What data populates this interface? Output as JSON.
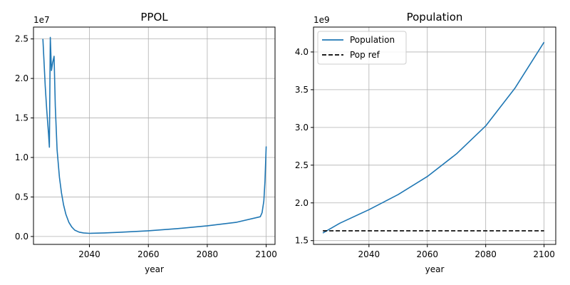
{
  "chart_data": [
    {
      "type": "line",
      "title": "PPOL",
      "xlabel": "year",
      "ylabel": "",
      "offset_text": "1e7",
      "xlim": [
        2021,
        2103
      ],
      "ylim": [
        -0.1,
        2.65
      ],
      "xticks": [
        2040,
        2060,
        2080,
        2100
      ],
      "xtick_labels": [
        "2040",
        "2060",
        "2080",
        "2100"
      ],
      "yticks": [
        0.0,
        0.5,
        1.0,
        1.5,
        2.0,
        2.5
      ],
      "ytick_labels": [
        "0.0",
        "0.5",
        "1.0",
        "1.5",
        "2.0",
        "2.5"
      ],
      "grid": true,
      "legend": null,
      "colors": {
        "line": "#1f77b4",
        "grid": "#b0b0b0"
      },
      "series": [
        {
          "name": "",
          "style": "solid",
          "x": [
            2024.2,
            2025.0,
            2025.5,
            2026.1,
            2026.4,
            2026.7,
            2027.1,
            2027.5,
            2028.0,
            2028.4,
            2029.0,
            2029.8,
            2030.5,
            2031.2,
            2032.0,
            2033.0,
            2034.0,
            2035.0,
            2036.5,
            2038.0,
            2040.0,
            2045.0,
            2050.0,
            2060.0,
            2070.0,
            2080.0,
            2090.0,
            2098.0,
            2098.6,
            2099.2,
            2099.6,
            2100.0
          ],
          "y": [
            2.5,
            1.9,
            1.6,
            1.3,
            1.13,
            2.52,
            2.1,
            2.2,
            2.28,
            1.65,
            1.1,
            0.75,
            0.55,
            0.4,
            0.28,
            0.18,
            0.12,
            0.08,
            0.055,
            0.045,
            0.04,
            0.045,
            0.052,
            0.072,
            0.1,
            0.135,
            0.18,
            0.25,
            0.3,
            0.45,
            0.7,
            1.14
          ]
        }
      ]
    },
    {
      "type": "line",
      "title": "Population",
      "xlabel": "year",
      "ylabel": "",
      "offset_text": "1e9",
      "xlim": [
        2021,
        2104
      ],
      "ylim": [
        1.45,
        4.33
      ],
      "xticks": [
        2040,
        2060,
        2080,
        2100
      ],
      "xtick_labels": [
        "2040",
        "2060",
        "2080",
        "2100"
      ],
      "yticks": [
        1.5,
        2.0,
        2.5,
        3.0,
        3.5,
        4.0
      ],
      "ytick_labels": [
        "1.5",
        "2.0",
        "2.5",
        "3.0",
        "3.5",
        "4.0"
      ],
      "grid": true,
      "legend": "top-left",
      "colors": {
        "line": "#1f77b4",
        "ref": "#000000",
        "grid": "#b0b0b0"
      },
      "series": [
        {
          "name": "Population",
          "style": "solid",
          "x": [
            2024.2,
            2030,
            2040,
            2050,
            2060,
            2070,
            2080,
            2090,
            2100
          ],
          "y": [
            1.6,
            1.73,
            1.91,
            2.11,
            2.35,
            2.65,
            3.02,
            3.52,
            4.13
          ]
        },
        {
          "name": "Pop ref",
          "style": "dashed",
          "x": [
            2024.2,
            2100
          ],
          "y": [
            1.63,
            1.63
          ]
        }
      ]
    }
  ]
}
